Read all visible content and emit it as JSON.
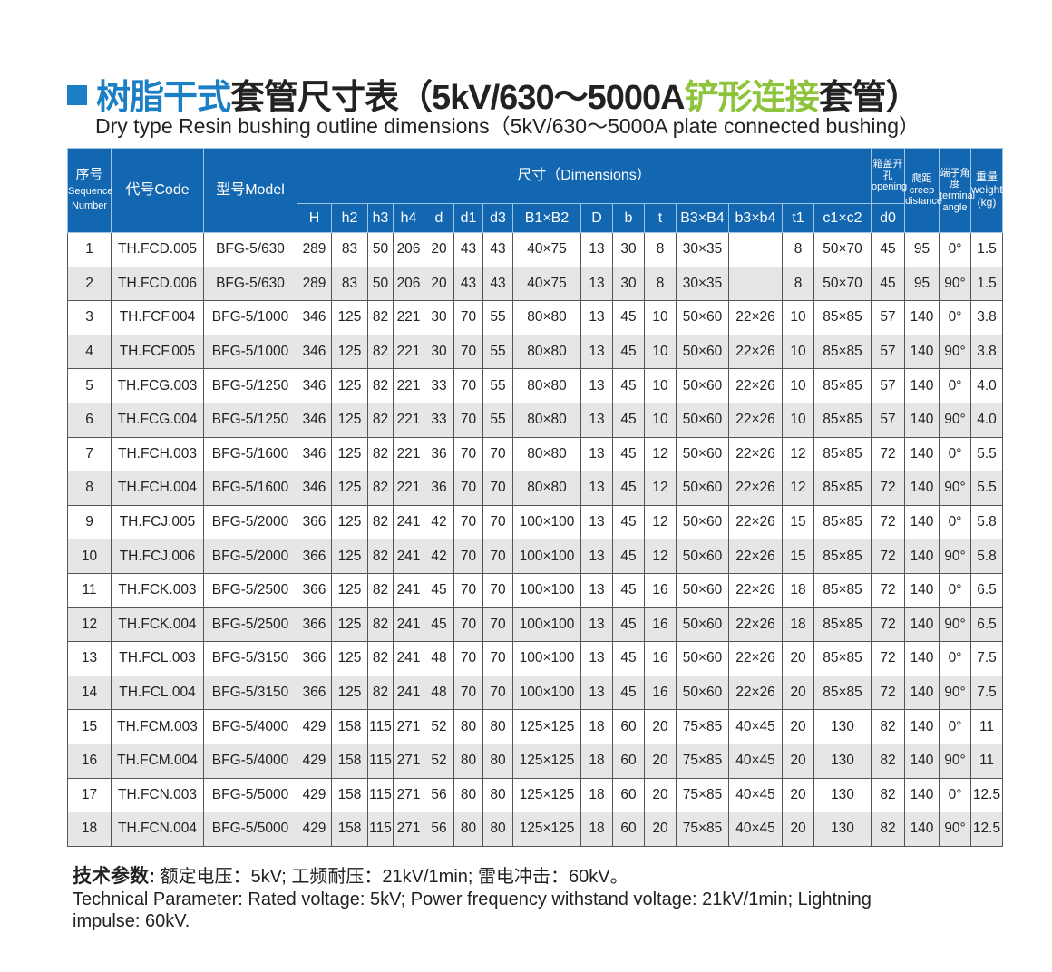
{
  "title": {
    "blue": "树脂干式",
    "black1": "套管尺寸表（5kV/630～5000A",
    "green": "铲形连接",
    "black2": "套管）"
  },
  "subtitle": "Dry type Resin bushing outline dimensions（5kV/630～5000A plate connected bushing）",
  "colors": {
    "header_bg": "#1366b0",
    "title_blue": "#1a7fc4",
    "title_green": "#8cc43c",
    "stripe": "#e6e6e6"
  },
  "header": {
    "seq_cn": "序号",
    "seq_en": "Sequence Number",
    "code": "代号Code",
    "model": "型号Model",
    "dimensions": "尺寸（Dimensions）",
    "opening_cn": "箱盖开孔",
    "opening_en": "opening",
    "creep_cn": "爬距",
    "creep_en": "creep distance",
    "angle_cn": "端子角度",
    "angle_en": "terminal angle",
    "weight_cn": "重量",
    "weight_en": "weight (kg)",
    "sub": [
      "H",
      "h2",
      "h3",
      "h4",
      "d",
      "d1",
      "d3",
      "B1×B2",
      "D",
      "b",
      "t",
      "B3×B4",
      "b3×b4",
      "t1",
      "c1×c2",
      "d0"
    ]
  },
  "rows": [
    [
      "1",
      "TH.FCD.005",
      "BFG-5/630",
      "289",
      "83",
      "50",
      "206",
      "20",
      "43",
      "43",
      "40×75",
      "13",
      "30",
      "8",
      "30×35",
      "",
      "8",
      "50×70",
      "45",
      "95",
      "0°",
      "1.5"
    ],
    [
      "2",
      "TH.FCD.006",
      "BFG-5/630",
      "289",
      "83",
      "50",
      "206",
      "20",
      "43",
      "43",
      "40×75",
      "13",
      "30",
      "8",
      "30×35",
      "",
      "8",
      "50×70",
      "45",
      "95",
      "90°",
      "1.5"
    ],
    [
      "3",
      "TH.FCF.004",
      "BFG-5/1000",
      "346",
      "125",
      "82",
      "221",
      "30",
      "70",
      "55",
      "80×80",
      "13",
      "45",
      "10",
      "50×60",
      "22×26",
      "10",
      "85×85",
      "57",
      "140",
      "0°",
      "3.8"
    ],
    [
      "4",
      "TH.FCF.005",
      "BFG-5/1000",
      "346",
      "125",
      "82",
      "221",
      "30",
      "70",
      "55",
      "80×80",
      "13",
      "45",
      "10",
      "50×60",
      "22×26",
      "10",
      "85×85",
      "57",
      "140",
      "90°",
      "3.8"
    ],
    [
      "5",
      "TH.FCG.003",
      "BFG-5/1250",
      "346",
      "125",
      "82",
      "221",
      "33",
      "70",
      "55",
      "80×80",
      "13",
      "45",
      "10",
      "50×60",
      "22×26",
      "10",
      "85×85",
      "57",
      "140",
      "0°",
      "4.0"
    ],
    [
      "6",
      "TH.FCG.004",
      "BFG-5/1250",
      "346",
      "125",
      "82",
      "221",
      "33",
      "70",
      "55",
      "80×80",
      "13",
      "45",
      "10",
      "50×60",
      "22×26",
      "10",
      "85×85",
      "57",
      "140",
      "90°",
      "4.0"
    ],
    [
      "7",
      "TH.FCH.003",
      "BFG-5/1600",
      "346",
      "125",
      "82",
      "221",
      "36",
      "70",
      "70",
      "80×80",
      "13",
      "45",
      "12",
      "50×60",
      "22×26",
      "12",
      "85×85",
      "72",
      "140",
      "0°",
      "5.5"
    ],
    [
      "8",
      "TH.FCH.004",
      "BFG-5/1600",
      "346",
      "125",
      "82",
      "221",
      "36",
      "70",
      "70",
      "80×80",
      "13",
      "45",
      "12",
      "50×60",
      "22×26",
      "12",
      "85×85",
      "72",
      "140",
      "90°",
      "5.5"
    ],
    [
      "9",
      "TH.FCJ.005",
      "BFG-5/2000",
      "366",
      "125",
      "82",
      "241",
      "42",
      "70",
      "70",
      "100×100",
      "13",
      "45",
      "12",
      "50×60",
      "22×26",
      "15",
      "85×85",
      "72",
      "140",
      "0°",
      "5.8"
    ],
    [
      "10",
      "TH.FCJ.006",
      "BFG-5/2000",
      "366",
      "125",
      "82",
      "241",
      "42",
      "70",
      "70",
      "100×100",
      "13",
      "45",
      "12",
      "50×60",
      "22×26",
      "15",
      "85×85",
      "72",
      "140",
      "90°",
      "5.8"
    ],
    [
      "11",
      "TH.FCK.003",
      "BFG-5/2500",
      "366",
      "125",
      "82",
      "241",
      "45",
      "70",
      "70",
      "100×100",
      "13",
      "45",
      "16",
      "50×60",
      "22×26",
      "18",
      "85×85",
      "72",
      "140",
      "0°",
      "6.5"
    ],
    [
      "12",
      "TH.FCK.004",
      "BFG-5/2500",
      "366",
      "125",
      "82",
      "241",
      "45",
      "70",
      "70",
      "100×100",
      "13",
      "45",
      "16",
      "50×60",
      "22×26",
      "18",
      "85×85",
      "72",
      "140",
      "90°",
      "6.5"
    ],
    [
      "13",
      "TH.FCL.003",
      "BFG-5/3150",
      "366",
      "125",
      "82",
      "241",
      "48",
      "70",
      "70",
      "100×100",
      "13",
      "45",
      "16",
      "50×60",
      "22×26",
      "20",
      "85×85",
      "72",
      "140",
      "0°",
      "7.5"
    ],
    [
      "14",
      "TH.FCL.004",
      "BFG-5/3150",
      "366",
      "125",
      "82",
      "241",
      "48",
      "70",
      "70",
      "100×100",
      "13",
      "45",
      "16",
      "50×60",
      "22×26",
      "20",
      "85×85",
      "72",
      "140",
      "90°",
      "7.5"
    ],
    [
      "15",
      "TH.FCM.003",
      "BFG-5/4000",
      "429",
      "158",
      "115",
      "271",
      "52",
      "80",
      "80",
      "125×125",
      "18",
      "60",
      "20",
      "75×85",
      "40×45",
      "20",
      "130",
      "82",
      "140",
      "0°",
      "11"
    ],
    [
      "16",
      "TH.FCM.004",
      "BFG-5/4000",
      "429",
      "158",
      "115",
      "271",
      "52",
      "80",
      "80",
      "125×125",
      "18",
      "60",
      "20",
      "75×85",
      "40×45",
      "20",
      "130",
      "82",
      "140",
      "90°",
      "11"
    ],
    [
      "17",
      "TH.FCN.003",
      "BFG-5/5000",
      "429",
      "158",
      "115",
      "271",
      "56",
      "80",
      "80",
      "125×125",
      "18",
      "60",
      "20",
      "75×85",
      "40×45",
      "20",
      "130",
      "82",
      "140",
      "0°",
      "12.5"
    ],
    [
      "18",
      "TH.FCN.004",
      "BFG-5/5000",
      "429",
      "158",
      "115",
      "271",
      "56",
      "80",
      "80",
      "125×125",
      "18",
      "60",
      "20",
      "75×85",
      "40×45",
      "20",
      "130",
      "82",
      "140",
      "90°",
      "12.5"
    ]
  ],
  "footer": {
    "label": "技术参数:",
    "cn": "额定电压：5kV;  工频耐压：21kV/1min;  雷电冲击：60kV。",
    "en": "Technical Parameter: Rated voltage: 5kV; Power frequency withstand voltage: 21kV/1min; Lightning impulse: 60kV."
  }
}
